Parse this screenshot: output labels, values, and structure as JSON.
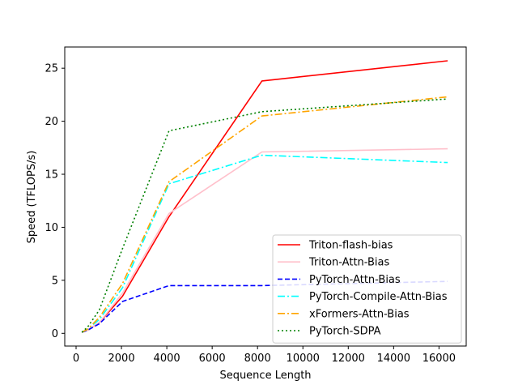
{
  "chart_data": {
    "type": "line",
    "title": "",
    "xlabel": "Sequence Length",
    "ylabel": "Speed (TFLOPS/s)",
    "xlim": [
      -500,
      17200
    ],
    "ylim": [
      -1.2,
      27.0
    ],
    "xticks": [
      0,
      2000,
      4000,
      6000,
      8000,
      10000,
      12000,
      14000,
      16000
    ],
    "yticks": [
      0,
      5,
      10,
      15,
      20,
      25
    ],
    "grid": false,
    "legend_position": "lower-right",
    "x": [
      256,
      512,
      1024,
      2048,
      4096,
      8192,
      16384
    ],
    "series": [
      {
        "name": "Triton-flash-bias",
        "color": "#ff0000",
        "dash": "solid",
        "values": [
          0.1,
          0.3,
          1.0,
          3.5,
          11.0,
          23.8,
          25.7
        ]
      },
      {
        "name": "Triton-Attn-Bias",
        "color": "#ffc0cb",
        "dash": "solid",
        "values": [
          0.1,
          0.3,
          1.0,
          3.8,
          11.3,
          17.1,
          17.4
        ]
      },
      {
        "name": "PyTorch-Attn-Bias",
        "color": "#0000ff",
        "dash": "dashed",
        "values": [
          0.1,
          0.3,
          0.9,
          3.0,
          4.5,
          4.5,
          4.9
        ]
      },
      {
        "name": "PyTorch-Compile-Attn-Bias",
        "color": "#00ffff",
        "dash": "dashdot",
        "values": [
          0.1,
          0.4,
          1.3,
          4.3,
          14.1,
          16.8,
          16.1
        ]
      },
      {
        "name": "xFormers-Attn-Bias",
        "color": "#ffa500",
        "dash": "dashdot",
        "values": [
          0.1,
          0.4,
          1.5,
          4.7,
          14.3,
          20.5,
          22.3
        ]
      },
      {
        "name": "PyTorch-SDPA",
        "color": "#008000",
        "dash": "dotted",
        "values": [
          0.1,
          0.6,
          2.2,
          8.0,
          19.1,
          20.9,
          22.1
        ]
      }
    ]
  }
}
